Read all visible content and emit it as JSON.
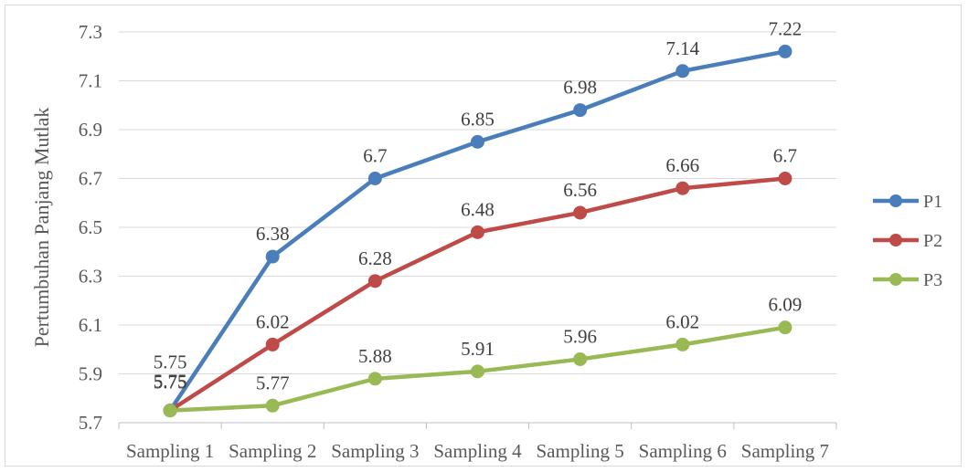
{
  "chart_data": {
    "type": "line",
    "title": "",
    "xlabel": "",
    "ylabel": "Pertumbuhan Panjang Mutlak",
    "categories": [
      "Sampling 1",
      "Sampling 2",
      "Sampling 3",
      "Sampling 4",
      "Sampling 5",
      "Sampling 6",
      "Sampling 7"
    ],
    "y_ticks": [
      "5.7",
      "5.9",
      "6.1",
      "6.3",
      "6.5",
      "6.7",
      "6.9",
      "7.1",
      "7.3"
    ],
    "ylim": [
      5.7,
      7.3
    ],
    "grid": true,
    "legend_position": "right",
    "series": [
      {
        "name": "P1",
        "color": "#4a7ebb",
        "values": [
          5.75,
          6.38,
          6.7,
          6.85,
          6.98,
          7.14,
          7.22
        ],
        "labels": [
          "5.75",
          "6.38",
          "6.7",
          "6.85",
          "6.98",
          "7.14",
          "7.22"
        ]
      },
      {
        "name": "P2",
        "color": "#be4b48",
        "values": [
          5.75,
          6.02,
          6.28,
          6.48,
          6.56,
          6.66,
          6.7
        ],
        "labels": [
          "5.75",
          "6.02",
          "6.28",
          "6.48",
          "6.56",
          "6.66",
          "6.7"
        ]
      },
      {
        "name": "P3",
        "color": "#98b954",
        "values": [
          5.75,
          5.77,
          5.88,
          5.91,
          5.96,
          6.02,
          6.09
        ],
        "labels": [
          "5.75",
          "5.77",
          "5.88",
          "5.91",
          "5.96",
          "6.02",
          "6.09"
        ]
      }
    ]
  }
}
